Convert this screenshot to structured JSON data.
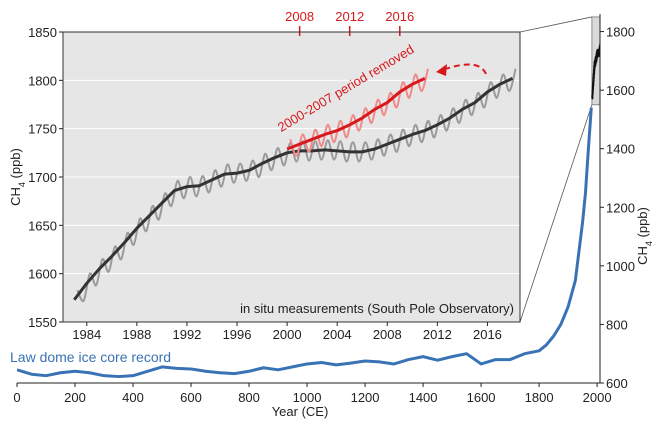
{
  "chart_data": [
    {
      "type": "line",
      "xlim": [
        1982.1,
        2018.6
      ],
      "ylim": [
        1550,
        1850
      ],
      "xticks": [
        1984,
        1988,
        1992,
        1996,
        2000,
        2004,
        2008,
        2012,
        2016
      ],
      "yticks": [
        1550,
        1600,
        1650,
        1700,
        1750,
        1800,
        1850
      ],
      "x2lim": [
        1989.1,
        2025.6
      ],
      "x2ticks": [
        2008,
        2012,
        2016
      ],
      "x2color": "#d7191c",
      "ylabel": [
        "CH",
        "4",
        " (ppb)"
      ],
      "grid": true,
      "background": "#e6e6e6",
      "annotations": [
        "in situ measurements (South Pole Observatory)",
        "2000-2007 period removed"
      ],
      "series": [
        {
          "color": "#9a9a9a",
          "smooth": true,
          "x": [
            1983.25,
            1983.75,
            1984.25,
            1984.75,
            1985.25,
            1985.75,
            1986.25,
            1986.75,
            1987.25,
            1987.75,
            1988.25,
            1988.75,
            1989.25,
            1989.75,
            1990.25,
            1990.75,
            1991.25,
            1991.75,
            1992.25,
            1992.75,
            1993.25,
            1993.75,
            1994.25,
            1994.75,
            1995.25,
            1995.75,
            1996.25,
            1996.75,
            1997.25,
            1997.75,
            1998.25,
            1998.75,
            1999.25,
            1999.75,
            2000.25,
            2000.75,
            2001.25,
            2001.75,
            2002.25,
            2002.75,
            2003.25,
            2003.75,
            2004.25,
            2004.75,
            2005.25,
            2005.75,
            2006.25,
            2006.75,
            2007.25,
            2007.75,
            2008.25,
            2008.75,
            2009.25,
            2009.75,
            2010.25,
            2010.75,
            2011.25,
            2011.75,
            2012.25,
            2012.75,
            2013.25,
            2013.75,
            2014.25,
            2014.75,
            2015.25,
            2015.75,
            2016.25,
            2016.75,
            2017.25,
            2017.75,
            2018.25
          ],
          "values": [
            1583,
            1572,
            1600,
            1588,
            1615,
            1602,
            1628,
            1615,
            1642,
            1630,
            1657,
            1644,
            1670,
            1656,
            1683,
            1670,
            1696,
            1678,
            1700,
            1680,
            1701,
            1684,
            1707,
            1690,
            1713,
            1694,
            1714,
            1696,
            1717,
            1700,
            1724,
            1707,
            1730,
            1712,
            1735,
            1716,
            1737,
            1717,
            1737,
            1718,
            1738,
            1718,
            1737,
            1716,
            1736,
            1716,
            1736,
            1718,
            1739,
            1722,
            1744,
            1726,
            1749,
            1732,
            1754,
            1736,
            1758,
            1741,
            1764,
            1748,
            1771,
            1756,
            1780,
            1764,
            1787,
            1772,
            1798,
            1782,
            1806,
            1789,
            1812
          ]
        },
        {
          "color": "#333333",
          "x": [
            1983,
            1984,
            1985,
            1986,
            1987,
            1988,
            1989,
            1990,
            1991,
            1992,
            1993,
            1994,
            1995,
            1996,
            1997,
            1998,
            1999,
            2000,
            2001,
            2002,
            2003,
            2004,
            2005,
            2006,
            2007,
            2008,
            2009,
            2010,
            2011,
            2012,
            2013,
            2014,
            2015,
            2016,
            2017,
            2018
          ],
          "values": [
            1573,
            1590,
            1605,
            1618,
            1632,
            1647,
            1660,
            1673,
            1686,
            1690,
            1691,
            1697,
            1703,
            1704,
            1707,
            1714,
            1720,
            1725,
            1727,
            1727,
            1728,
            1727,
            1726,
            1726,
            1729,
            1734,
            1739,
            1744,
            1748,
            1754,
            1761,
            1770,
            1777,
            1788,
            1796,
            1802
          ]
        },
        {
          "color": "#ef8a8a",
          "smooth": true,
          "axis": "x2",
          "x": [
            2007.25,
            2007.75,
            2008.25,
            2008.75,
            2009.25,
            2009.75,
            2010.25,
            2010.75,
            2011.25,
            2011.75,
            2012.25,
            2012.75,
            2013.25,
            2013.75,
            2014.25,
            2014.75,
            2015.25,
            2015.75,
            2016.25,
            2016.75,
            2017.25,
            2017.75,
            2018.25
          ],
          "values": [
            1739,
            1722,
            1744,
            1726,
            1749,
            1732,
            1754,
            1736,
            1758,
            1741,
            1764,
            1748,
            1771,
            1756,
            1780,
            1764,
            1787,
            1772,
            1798,
            1782,
            1806,
            1789,
            1812
          ]
        },
        {
          "color": "#d7191c",
          "axis": "x2",
          "x": [
            2007,
            2008,
            2009,
            2010,
            2011,
            2012,
            2013,
            2014,
            2015,
            2016,
            2017,
            2018
          ],
          "values": [
            1729,
            1734,
            1739,
            1744,
            1748,
            1754,
            1761,
            1770,
            1777,
            1788,
            1796,
            1802
          ]
        }
      ]
    },
    {
      "type": "line",
      "xlim": [
        0,
        2010
      ],
      "ylim": [
        600,
        1860
      ],
      "xticks": [
        0,
        200,
        400,
        600,
        800,
        1000,
        1200,
        1400,
        1600,
        1800,
        2000
      ],
      "yticks": [
        600,
        800,
        1000,
        1200,
        1400,
        1600,
        1800
      ],
      "xlabel": "Year (CE)",
      "ylabel": [
        "CH",
        "4",
        " (ppb)"
      ],
      "zoom_color": "#d9d9d9",
      "annotations": [
        "Law dome ice core record"
      ],
      "series": [
        {
          "color": "#3a73b5",
          "x": [
            0,
            50,
            100,
            150,
            200,
            250,
            300,
            350,
            400,
            450,
            500,
            550,
            600,
            650,
            700,
            750,
            800,
            850,
            900,
            950,
            1000,
            1050,
            1100,
            1150,
            1200,
            1250,
            1300,
            1350,
            1400,
            1450,
            1500,
            1550,
            1600,
            1650,
            1700,
            1750,
            1800,
            1825,
            1850,
            1875,
            1900,
            1925,
            1950,
            1960,
            1970,
            1980
          ],
          "values": [
            645,
            630,
            625,
            635,
            640,
            635,
            625,
            622,
            625,
            640,
            655,
            650,
            648,
            640,
            635,
            632,
            640,
            652,
            645,
            655,
            665,
            670,
            662,
            668,
            675,
            672,
            665,
            680,
            690,
            678,
            690,
            700,
            665,
            680,
            680,
            700,
            710,
            730,
            760,
            800,
            860,
            950,
            1150,
            1250,
            1400,
            1540
          ]
        },
        {
          "color": "#111111",
          "source": "chart_data.0.series.0"
        }
      ]
    }
  ]
}
